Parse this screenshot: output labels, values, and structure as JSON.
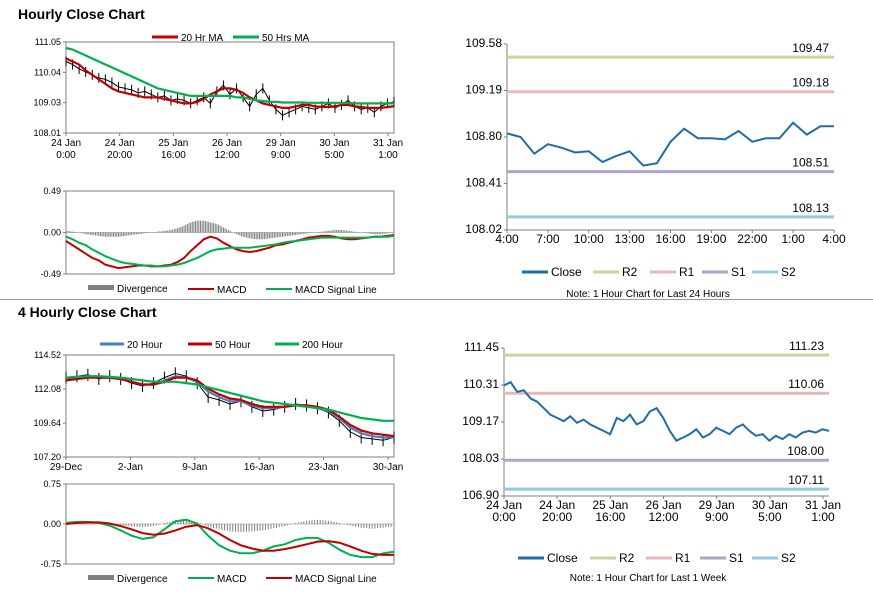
{
  "sections": [
    {
      "title": "Hourly Close Chart"
    },
    {
      "title": "4 Hourly Close Chart"
    }
  ],
  "colors": {
    "price": "#000000",
    "ma_red": "#c00000",
    "ma_green": "#00b050",
    "ma_blue": "#4a7ebb",
    "close": "#1f6ca8",
    "r2": "#c3d69b",
    "r1": "#e6b9b8",
    "s1": "#b3a2c7",
    "s2": "#93cddd",
    "divergence": "#808080"
  },
  "chart_data": [
    {
      "id": "hourly-price",
      "type": "line",
      "yticks": [
        "111.05",
        "110.04",
        "109.03",
        "108.01"
      ],
      "ylim": [
        108.01,
        111.05
      ],
      "xticks": [
        [
          "24 Jan",
          "0:00"
        ],
        [
          "24 Jan",
          "20:00"
        ],
        [
          "25 Jan",
          "16:00"
        ],
        [
          "26 Jan",
          "12:00"
        ],
        [
          "29 Jan",
          "9:00"
        ],
        [
          "30 Jan",
          "5:00"
        ],
        [
          "31 Jan",
          "1:00"
        ]
      ],
      "legend": [
        "20 Hr MA",
        "50 Hrs MA"
      ],
      "series": [
        {
          "name": "Price",
          "values": [
            110.4,
            110.3,
            110.15,
            110.05,
            109.95,
            109.85,
            109.8,
            109.7,
            109.55,
            109.5,
            109.45,
            109.35,
            109.4,
            109.3,
            109.2,
            109.25,
            109.1,
            109.15,
            109.1,
            109.0,
            109.1,
            109.2,
            109.0,
            109.4,
            109.6,
            109.3,
            109.5,
            109.2,
            108.9,
            109.3,
            109.5,
            109.1,
            108.8,
            108.6,
            108.7,
            108.8,
            108.9,
            108.85,
            108.8,
            108.9,
            109.0,
            108.85,
            108.95,
            109.1,
            108.9,
            108.8,
            108.85,
            108.7,
            108.9,
            109.0,
            109.05
          ]
        },
        {
          "name": "20 Hr MA",
          "values": [
            110.5,
            110.4,
            110.3,
            110.1,
            109.95,
            109.8,
            109.65,
            109.5,
            109.4,
            109.35,
            109.3,
            109.25,
            109.2,
            109.2,
            109.2,
            109.15,
            109.1,
            109.05,
            109.0,
            109.0,
            109.05,
            109.15,
            109.3,
            109.4,
            109.5,
            109.5,
            109.45,
            109.35,
            109.2,
            109.1,
            109.0,
            108.95,
            108.9,
            108.85,
            108.85,
            108.9,
            108.95,
            108.95,
            108.9,
            108.88,
            108.88,
            108.9,
            108.95,
            108.95,
            108.9,
            108.88,
            108.85,
            108.85,
            108.85,
            108.88,
            108.9
          ]
        },
        {
          "name": "50 Hrs MA",
          "values": [
            110.85,
            110.8,
            110.7,
            110.6,
            110.5,
            110.4,
            110.3,
            110.2,
            110.1,
            110.0,
            109.9,
            109.8,
            109.7,
            109.6,
            109.5,
            109.45,
            109.4,
            109.35,
            109.3,
            109.25,
            109.25,
            109.25,
            109.25,
            109.25,
            109.25,
            109.25,
            109.2,
            109.2,
            109.15,
            109.1,
            109.08,
            109.05,
            109.05,
            109.03,
            109.03,
            109.03,
            109.03,
            109.02,
            109.02,
            109.02,
            109.02,
            109.02,
            109.02,
            109.02,
            109.0,
            109.0,
            109.0,
            109.0,
            109.0,
            109.0,
            109.0
          ]
        }
      ]
    },
    {
      "id": "hourly-macd",
      "type": "line",
      "yticks": [
        "0.49",
        "0.00",
        "-0.49"
      ],
      "ylim": [
        -0.49,
        0.49
      ],
      "legend": [
        "Divergence",
        "MACD",
        "MACD Signal Line"
      ],
      "series": [
        {
          "name": "Divergence",
          "values": [
            0.02,
            0.01,
            0.0,
            -0.02,
            -0.03,
            -0.04,
            -0.05,
            -0.05,
            -0.05,
            -0.04,
            -0.03,
            -0.02,
            -0.01,
            0.0,
            0.01,
            0.02,
            0.03,
            0.05,
            0.08,
            0.12,
            0.14,
            0.14,
            0.12,
            0.1,
            0.06,
            0.02,
            -0.02,
            -0.05,
            -0.07,
            -0.08,
            -0.08,
            -0.07,
            -0.06,
            -0.05,
            -0.04,
            -0.03,
            -0.02,
            -0.01,
            0.0,
            0.01,
            0.02,
            0.03,
            0.03,
            0.02,
            0.01,
            0.0,
            -0.01,
            -0.02,
            -0.02,
            -0.01,
            0.0
          ]
        },
        {
          "name": "MACD",
          "values": [
            -0.1,
            -0.15,
            -0.2,
            -0.25,
            -0.3,
            -0.33,
            -0.38,
            -0.4,
            -0.42,
            -0.41,
            -0.4,
            -0.39,
            -0.39,
            -0.4,
            -0.4,
            -0.39,
            -0.38,
            -0.35,
            -0.3,
            -0.22,
            -0.15,
            -0.08,
            -0.05,
            -0.07,
            -0.12,
            -0.16,
            -0.2,
            -0.22,
            -0.23,
            -0.22,
            -0.2,
            -0.18,
            -0.15,
            -0.14,
            -0.12,
            -0.1,
            -0.08,
            -0.06,
            -0.05,
            -0.04,
            -0.04,
            -0.05,
            -0.07,
            -0.08,
            -0.08,
            -0.07,
            -0.06,
            -0.05,
            -0.05,
            -0.04,
            -0.03
          ]
        },
        {
          "name": "MACD Signal Line",
          "values": [
            -0.05,
            -0.08,
            -0.12,
            -0.15,
            -0.2,
            -0.24,
            -0.28,
            -0.31,
            -0.34,
            -0.36,
            -0.37,
            -0.38,
            -0.39,
            -0.39,
            -0.4,
            -0.4,
            -0.39,
            -0.38,
            -0.36,
            -0.33,
            -0.3,
            -0.26,
            -0.22,
            -0.2,
            -0.19,
            -0.18,
            -0.18,
            -0.18,
            -0.18,
            -0.17,
            -0.16,
            -0.15,
            -0.14,
            -0.12,
            -0.11,
            -0.1,
            -0.09,
            -0.08,
            -0.07,
            -0.06,
            -0.06,
            -0.06,
            -0.06,
            -0.06,
            -0.06,
            -0.06,
            -0.06,
            -0.05,
            -0.05,
            -0.05,
            -0.04
          ]
        }
      ]
    },
    {
      "id": "hourly-pivot",
      "type": "line",
      "yticks": [
        "109.58",
        "109.19",
        "108.80",
        "108.41",
        "108.02"
      ],
      "ylim": [
        108.02,
        109.58
      ],
      "xticks": [
        "4:00",
        "7:00",
        "10:00",
        "13:00",
        "16:00",
        "19:00",
        "22:00",
        "1:00",
        "4:00"
      ],
      "levels": [
        {
          "name": "R2",
          "value": 109.47,
          "label": "109.47",
          "color": "#c3d69b"
        },
        {
          "name": "R1",
          "value": 109.18,
          "label": "109.18",
          "color": "#e6b9b8"
        },
        {
          "name": "S1",
          "value": 108.51,
          "label": "108.51",
          "color": "#b3a2c7"
        },
        {
          "name": "S2",
          "value": 108.13,
          "label": "108.13",
          "color": "#93cddd"
        }
      ],
      "legend": [
        "Close",
        "R2",
        "R1",
        "S1",
        "S2"
      ],
      "note": "Note: 1 Hour Chart for Last 24 Hours",
      "series": [
        {
          "name": "Close",
          "values": [
            108.83,
            108.8,
            108.66,
            108.74,
            108.71,
            108.67,
            108.68,
            108.59,
            108.64,
            108.68,
            108.56,
            108.58,
            108.76,
            108.87,
            108.79,
            108.79,
            108.78,
            108.85,
            108.76,
            108.79,
            108.79,
            108.92,
            108.82,
            108.89,
            108.89
          ]
        }
      ]
    },
    {
      "id": "4hourly-price",
      "type": "line",
      "yticks": [
        "114.52",
        "112.08",
        "109.64",
        "107.20"
      ],
      "ylim": [
        107.2,
        114.52
      ],
      "xticks": [
        "29-Dec",
        "2-Jan",
        "9-Jan",
        "16-Jan",
        "23-Jan",
        "30-Jan"
      ],
      "legend": [
        "20 Hour",
        "50 Hour",
        "200 Hour"
      ],
      "series": [
        {
          "name": "Price",
          "values": [
            112.9,
            113.0,
            113.1,
            112.8,
            113.0,
            112.8,
            112.5,
            112.3,
            112.5,
            112.9,
            113.2,
            113.0,
            112.5,
            111.5,
            111.3,
            111.0,
            111.2,
            110.8,
            110.5,
            110.6,
            110.8,
            111.0,
            110.9,
            110.7,
            110.4,
            109.8,
            109.0,
            108.6,
            108.5,
            108.4,
            108.6
          ]
        },
        {
          "name": "20 Hour",
          "values": [
            112.8,
            112.9,
            113.0,
            112.9,
            112.9,
            112.8,
            112.6,
            112.4,
            112.4,
            112.7,
            113.0,
            112.9,
            112.6,
            111.9,
            111.5,
            111.2,
            111.2,
            110.9,
            110.7,
            110.7,
            110.8,
            110.9,
            110.9,
            110.7,
            110.5,
            110.0,
            109.3,
            108.9,
            108.7,
            108.6,
            108.6
          ]
        },
        {
          "name": "50 Hour",
          "values": [
            112.7,
            112.8,
            112.9,
            112.9,
            112.9,
            112.8,
            112.6,
            112.4,
            112.4,
            112.6,
            112.9,
            112.9,
            112.7,
            112.1,
            111.7,
            111.4,
            111.3,
            111.0,
            110.8,
            110.8,
            110.8,
            110.9,
            110.9,
            110.8,
            110.6,
            110.1,
            109.5,
            109.1,
            108.9,
            108.8,
            108.7
          ]
        },
        {
          "name": "200 Hour",
          "values": [
            112.9,
            112.95,
            113.0,
            113.0,
            112.95,
            112.9,
            112.8,
            112.7,
            112.6,
            112.6,
            112.6,
            112.5,
            112.4,
            112.2,
            112.0,
            111.8,
            111.6,
            111.4,
            111.2,
            111.1,
            111.0,
            110.9,
            110.8,
            110.7,
            110.6,
            110.4,
            110.2,
            110.0,
            109.9,
            109.8,
            109.8
          ]
        }
      ]
    },
    {
      "id": "4hourly-macd",
      "type": "line",
      "yticks": [
        "0.75",
        "0.00",
        "-0.75"
      ],
      "ylim": [
        -0.75,
        0.75
      ],
      "legend": [
        "Divergence",
        "MACD",
        "MACD Signal Line"
      ],
      "series": [
        {
          "name": "Divergence",
          "values": [
            0.0,
            0.02,
            0.03,
            0.02,
            0.01,
            -0.02,
            -0.05,
            -0.06,
            -0.04,
            0.02,
            0.07,
            0.08,
            0.04,
            -0.05,
            -0.1,
            -0.14,
            -0.15,
            -0.14,
            -0.12,
            -0.08,
            -0.04,
            0.02,
            0.06,
            0.08,
            0.06,
            0.02,
            -0.03,
            -0.07,
            -0.09,
            -0.07,
            -0.04
          ]
        },
        {
          "name": "MACD",
          "values": [
            0.02,
            0.04,
            0.04,
            0.02,
            -0.03,
            -0.12,
            -0.22,
            -0.28,
            -0.25,
            -0.1,
            0.05,
            0.08,
            0.0,
            -0.22,
            -0.4,
            -0.5,
            -0.55,
            -0.55,
            -0.5,
            -0.42,
            -0.38,
            -0.3,
            -0.26,
            -0.26,
            -0.35,
            -0.48,
            -0.58,
            -0.62,
            -0.62,
            -0.55,
            -0.52
          ]
        },
        {
          "name": "MACD Signal Line",
          "values": [
            0.0,
            0.02,
            0.03,
            0.03,
            0.01,
            -0.04,
            -0.1,
            -0.17,
            -0.2,
            -0.18,
            -0.12,
            -0.05,
            -0.02,
            -0.08,
            -0.18,
            -0.3,
            -0.4,
            -0.46,
            -0.5,
            -0.5,
            -0.47,
            -0.43,
            -0.38,
            -0.33,
            -0.32,
            -0.35,
            -0.42,
            -0.5,
            -0.56,
            -0.58,
            -0.58
          ]
        }
      ]
    },
    {
      "id": "4hourly-pivot",
      "type": "line",
      "yticks": [
        "111.45",
        "110.31",
        "109.17",
        "108.03",
        "106.90"
      ],
      "ylim": [
        106.9,
        111.45
      ],
      "xticks": [
        [
          "24 Jan",
          "0:00"
        ],
        [
          "24 Jan",
          "20:00"
        ],
        [
          "25 Jan",
          "16:00"
        ],
        [
          "26 Jan",
          "12:00"
        ],
        [
          "29 Jan",
          "9:00"
        ],
        [
          "30 Jan",
          "5:00"
        ],
        [
          "31 Jan",
          "1:00"
        ]
      ],
      "levels": [
        {
          "name": "R2",
          "value": 111.23,
          "label": "111.23",
          "color": "#c3d69b"
        },
        {
          "name": "R1",
          "value": 110.06,
          "label": "110.06",
          "color": "#e6b9b8"
        },
        {
          "name": "S1",
          "value": 108.0,
          "label": "108.00",
          "color": "#b3a2c7"
        },
        {
          "name": "S2",
          "value": 107.11,
          "label": "107.11",
          "color": "#93cddd"
        }
      ],
      "legend": [
        "Close",
        "R2",
        "R1",
        "S1",
        "S2"
      ],
      "note": "Note: 1 Hour Chart for Last 1 Week",
      "series": [
        {
          "name": "Close",
          "values": [
            110.3,
            110.4,
            110.1,
            110.15,
            109.9,
            109.8,
            109.6,
            109.4,
            109.3,
            109.2,
            109.35,
            109.15,
            109.25,
            109.1,
            109.0,
            108.9,
            108.8,
            109.3,
            109.2,
            109.4,
            109.1,
            109.2,
            109.5,
            109.6,
            109.3,
            108.9,
            108.6,
            108.7,
            108.8,
            108.95,
            108.7,
            108.8,
            109.0,
            108.9,
            108.8,
            109.0,
            109.1,
            108.9,
            108.75,
            108.8,
            108.6,
            108.75,
            108.65,
            108.8,
            108.7,
            108.85,
            108.9,
            108.85,
            108.95,
            108.9
          ]
        }
      ]
    }
  ]
}
